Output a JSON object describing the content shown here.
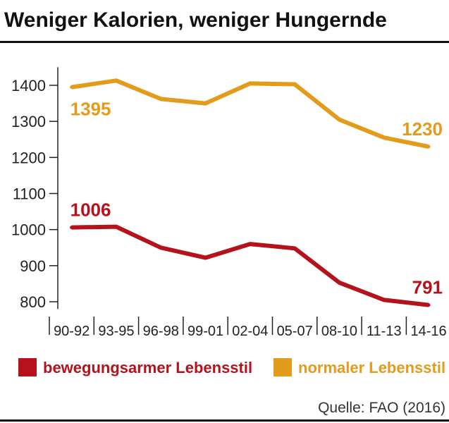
{
  "title": "Weniger Kalorien, weniger Hungernde",
  "source": "Quelle: FAO (2016)",
  "chart_data": {
    "type": "line",
    "title": "Weniger Kalorien, weniger Hungernde",
    "categories": [
      "90-92",
      "93-95",
      "96-98",
      "99-01",
      "02-04",
      "05-07",
      "08-10",
      "11-13",
      "14-16"
    ],
    "yticks": [
      "1400",
      "1300",
      "1200",
      "1100",
      "1000",
      "900",
      "800"
    ],
    "ylim": [
      780,
      1450
    ],
    "grid": false,
    "legend_placement": "bottom",
    "series": [
      {
        "name": "bewegungsarmer Lebensstil",
        "color": "#b5121b",
        "values": [
          1006,
          1008,
          950,
          922,
          960,
          948,
          853,
          805,
          791
        ],
        "first_label": "1006",
        "last_label": "791"
      },
      {
        "name": "normaler Lebensstil",
        "color": "#e39b1b",
        "values": [
          1395,
          1413,
          1362,
          1350,
          1405,
          1403,
          1305,
          1255,
          1230
        ],
        "first_label": "1395",
        "last_label": "1230"
      }
    ]
  }
}
